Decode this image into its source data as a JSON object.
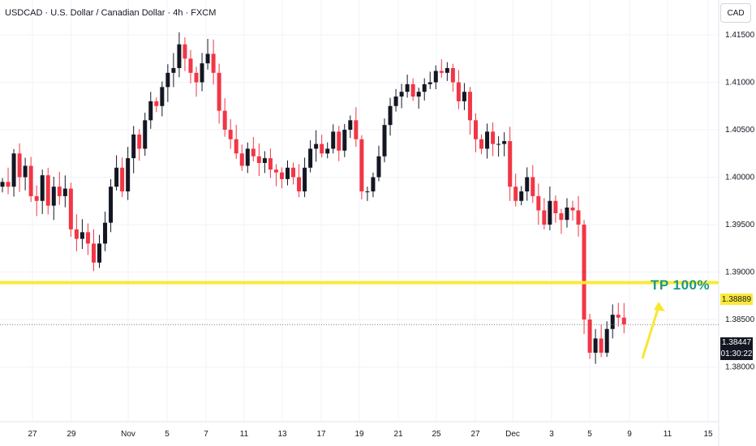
{
  "header": {
    "title": "USDCAD · U.S. Dollar / Canadian Dollar · 4h · FXCM",
    "currency_button": "CAD"
  },
  "price_tags": {
    "level": "1.38889",
    "current_price": "1.38447",
    "countdown": "01:30:22"
  },
  "annotation": {
    "tp_label": "TP 100%"
  },
  "colors": {
    "up": "#131722",
    "down": "#f23645",
    "level_line": "#fbe93b",
    "arrow": "#f7e733",
    "tp_text": "#1a9a82"
  },
  "chart_data": {
    "type": "candlestick",
    "symbol": "USDCAD",
    "timeframe": "4h",
    "y_ticks": [
      "1.41500",
      "1.41000",
      "1.40500",
      "1.40000",
      "1.39500",
      "1.39000",
      "1.38500",
      "1.38000"
    ],
    "ylim": [
      1.3772,
      1.4183
    ],
    "x_ticks": [
      "27",
      "29",
      "Nov",
      "5",
      "7",
      "11",
      "13",
      "17",
      "19",
      "21",
      "25",
      "27",
      "Dec",
      "3",
      "5",
      "9",
      "11",
      "15"
    ],
    "horizontal_line": 1.38889,
    "last_price": 1.38447,
    "closes": [
      1.3995,
      1.399,
      1.4025,
      1.4,
      1.4012,
      1.398,
      1.3975,
      1.4002,
      1.397,
      1.399,
      1.398,
      1.3988,
      1.3945,
      1.3935,
      1.3942,
      1.393,
      1.391,
      1.393,
      1.3952,
      1.399,
      1.401,
      1.3985,
      1.402,
      1.4045,
      1.403,
      1.406,
      1.408,
      1.4075,
      1.4095,
      1.411,
      1.4115,
      1.414,
      1.4125,
      1.411,
      1.41,
      1.412,
      1.413,
      1.411,
      1.407,
      1.405,
      1.404,
      1.4025,
      1.4012,
      1.403,
      1.4022,
      1.4015,
      1.402,
      1.4008,
      1.4005,
      1.3998,
      1.401,
      1.4,
      1.3985,
      1.401,
      1.403,
      1.4035,
      1.4025,
      1.403,
      1.4048,
      1.4028,
      1.405,
      1.406,
      1.404,
      1.3985,
      1.3985,
      1.4,
      1.4022,
      1.4055,
      1.4075,
      1.4085,
      1.409,
      1.4098,
      1.4085,
      1.409,
      1.4098,
      1.41,
      1.4112,
      1.411,
      1.4115,
      1.41,
      1.408,
      1.409,
      1.406,
      1.404,
      1.403,
      1.4048,
      1.4035,
      1.4035,
      1.4038,
      1.399,
      1.3975,
      1.3985,
      1.4,
      1.398,
      1.3965,
      1.395,
      1.3975,
      1.3962,
      1.3955,
      1.3968,
      1.3965,
      1.395,
      1.385,
      1.3815,
      1.383,
      1.3815,
      1.384,
      1.3855,
      1.3852,
      1.3845
    ]
  }
}
